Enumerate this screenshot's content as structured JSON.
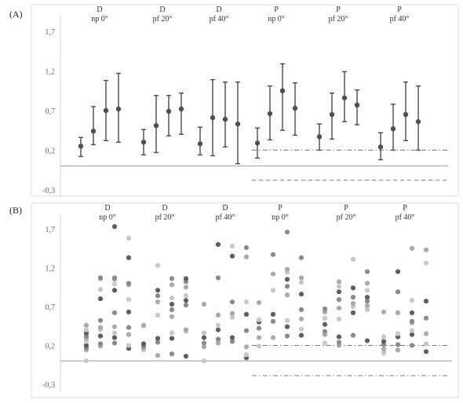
{
  "chart_data": [
    {
      "panel_label": "(A)",
      "type": "scatter",
      "variant": "mean-with-error-bars",
      "yticks": [
        "1,7",
        "1,2",
        "0,7",
        "0,2",
        "-0,3"
      ],
      "ylim": [
        -0.35,
        1.85
      ],
      "zero_line": 0,
      "reference_lines": [
        {
          "style": "dash-dot",
          "y": 0.2,
          "groups": "P"
        },
        {
          "style": "dashed",
          "y": -0.18,
          "groups": "P"
        }
      ],
      "groups": [
        {
          "line1": "D",
          "line2": "np 0°",
          "points": [
            {
              "mean": 0.25,
              "low": 0.12,
              "high": 0.36
            },
            {
              "mean": 0.44,
              "low": 0.27,
              "high": 0.75
            },
            {
              "mean": 0.7,
              "low": 0.32,
              "high": 1.08
            },
            {
              "mean": 0.72,
              "low": 0.3,
              "high": 1.17
            }
          ]
        },
        {
          "line1": "D",
          "line2": "pf 20°",
          "points": [
            {
              "mean": 0.3,
              "low": 0.14,
              "high": 0.46
            },
            {
              "mean": 0.51,
              "low": 0.17,
              "high": 0.89
            },
            {
              "mean": 0.69,
              "low": 0.38,
              "high": 0.89
            },
            {
              "mean": 0.72,
              "low": 0.4,
              "high": 0.92
            }
          ]
        },
        {
          "line1": "D",
          "line2": "pf 40°",
          "points": [
            {
              "mean": 0.28,
              "low": 0.14,
              "high": 0.49
            },
            {
              "mean": 0.61,
              "low": 0.13,
              "high": 1.09
            },
            {
              "mean": 0.59,
              "low": 0.24,
              "high": 1.06
            },
            {
              "mean": 0.53,
              "low": 0.03,
              "high": 1.06
            }
          ]
        },
        {
          "line1": "P",
          "line2": "np 0°",
          "points": [
            {
              "mean": 0.29,
              "low": 0.1,
              "high": 0.48
            },
            {
              "mean": 0.66,
              "low": 0.33,
              "high": 1.01
            },
            {
              "mean": 0.95,
              "low": 0.45,
              "high": 1.29
            },
            {
              "mean": 0.73,
              "low": 0.39,
              "high": 1.05
            }
          ]
        },
        {
          "line1": "P",
          "line2": "pf 20°",
          "points": [
            {
              "mean": 0.37,
              "low": 0.2,
              "high": 0.53
            },
            {
              "mean": 0.65,
              "low": 0.34,
              "high": 0.92
            },
            {
              "mean": 0.86,
              "low": 0.56,
              "high": 1.19
            },
            {
              "mean": 0.77,
              "low": 0.52,
              "high": 0.96
            }
          ]
        },
        {
          "line1": "P",
          "line2": "pf 40°",
          "points": [
            {
              "mean": 0.24,
              "low": 0.08,
              "high": 0.42
            },
            {
              "mean": 0.47,
              "low": 0.2,
              "high": 0.78
            },
            {
              "mean": 0.65,
              "low": 0.32,
              "high": 1.06
            },
            {
              "mean": 0.56,
              "low": 0.2,
              "high": 1.01
            }
          ]
        }
      ]
    },
    {
      "panel_label": "(B)",
      "type": "scatter",
      "variant": "individual-points",
      "yticks": [
        "1,7",
        "1,2",
        "0,7",
        "0,2",
        "-0,3"
      ],
      "ylim": [
        -0.35,
        1.85
      ],
      "zero_line": 0,
      "reference_lines": [
        {
          "style": "dash-dot",
          "y": 0.2,
          "groups": "P"
        },
        {
          "style": "dash-dot",
          "y": -0.19,
          "groups": "P"
        }
      ],
      "series_colors": [
        "#c8c8c8",
        "#aaaaaa",
        "#8a8a8a",
        "#5e5e5e"
      ],
      "groups": [
        {
          "line1": "D",
          "line2": "np 0°",
          "columns": [
            [
              0.0,
              0.14,
              0.17,
              0.2,
              0.25,
              0.29,
              0.32,
              0.36,
              0.4,
              0.46
            ],
            [
              0.19,
              0.22,
              0.32,
              0.4,
              0.43,
              0.52,
              0.8,
              0.92,
              1.06,
              1.07
            ],
            [
              0.23,
              0.3,
              0.36,
              0.44,
              0.62,
              0.91,
              0.99,
              1.05,
              1.07,
              1.73
            ],
            [
              0.16,
              0.2,
              0.34,
              0.43,
              0.63,
              0.79,
              0.98,
              1.0,
              1.33,
              1.58
            ]
          ]
        },
        {
          "line1": "D",
          "line2": "pf 20°",
          "columns": [
            [
              0.14,
              0.17,
              0.19,
              0.22,
              0.45,
              0.46
            ],
            [
              0.07,
              0.24,
              0.29,
              0.59,
              0.76,
              0.84,
              0.91,
              1.23
            ],
            [
              0.09,
              0.29,
              0.36,
              0.57,
              0.66,
              0.73,
              0.81,
              0.98,
              1.06
            ],
            [
              0.06,
              0.38,
              0.4,
              0.72,
              0.78,
              0.84,
              0.95,
              1.02,
              1.06
            ]
          ]
        },
        {
          "line1": "D",
          "line2": "pf 40°",
          "columns": [
            [
              0.0,
              0.18,
              0.23,
              0.3,
              0.36,
              0.73
            ],
            [
              0.23,
              0.28,
              0.4,
              0.46,
              0.59,
              1.07,
              1.5
            ],
            [
              0.25,
              0.3,
              0.56,
              0.61,
              0.76,
              1.35,
              1.48
            ],
            [
              0.04,
              0.08,
              0.18,
              0.39,
              0.6,
              0.76,
              1.34,
              1.46
            ]
          ]
        },
        {
          "line1": "P",
          "line2": "np 0°",
          "columns": [
            [
              0.19,
              0.3,
              0.42,
              0.5,
              0.53,
              0.75
            ],
            [
              0.3,
              0.51,
              0.6,
              0.91,
              1.12,
              1.37
            ],
            [
              0.32,
              0.44,
              0.52,
              0.85,
              0.96,
              1.05,
              1.14,
              1.18,
              1.66
            ],
            [
              0.33,
              0.41,
              0.54,
              0.66,
              0.86,
              1.01,
              1.07,
              1.33
            ]
          ]
        },
        {
          "line1": "P",
          "line2": "pf 20°",
          "columns": [
            [
              0.23,
              0.34,
              0.38,
              0.47,
              0.55,
              0.63,
              0.67
            ],
            [
              0.2,
              0.24,
              0.31,
              0.54,
              0.68,
              0.79,
              0.89,
              0.96,
              1.02
            ],
            [
              0.33,
              0.62,
              0.7,
              0.74,
              0.82,
              0.94,
              1.31
            ],
            [
              0.26,
              0.66,
              0.71,
              0.77,
              0.82,
              0.91,
              1.0,
              1.15
            ]
          ]
        },
        {
          "line1": "P",
          "line2": "pf 40°",
          "columns": [
            [
              0.1,
              0.15,
              0.21,
              0.25,
              0.31,
              0.63
            ],
            [
              0.14,
              0.21,
              0.31,
              0.35,
              0.62,
              0.89,
              1.15
            ],
            [
              0.2,
              0.34,
              0.39,
              0.49,
              0.51,
              0.62,
              0.78,
              1.45
            ],
            [
              0.12,
              0.22,
              0.35,
              0.55,
              0.77,
              1.26,
              1.43
            ]
          ]
        }
      ]
    }
  ]
}
